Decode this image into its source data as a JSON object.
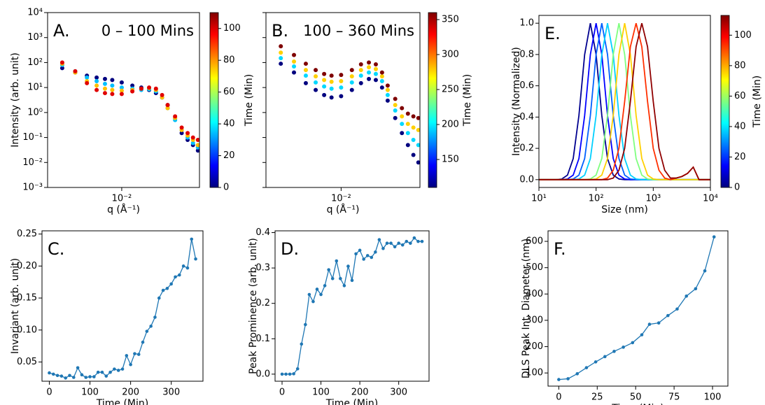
{
  "chart_data": [
    {
      "type": "scatter",
      "panel_label": "A.",
      "subtitle": "0 – 100 Mins",
      "xlabel": "q (Å⁻¹)",
      "ylabel": "Intensity (arb. unit)",
      "xlog": true,
      "ylog": true,
      "xlim": [
        0.0028,
        0.038
      ],
      "ylim": [
        0.001,
        10000
      ],
      "xticks": [
        {
          "value": 0.01,
          "label": "10⁻²"
        }
      ],
      "yticks": [
        {
          "value": 0.001,
          "label": "10⁻³"
        },
        {
          "value": 0.01,
          "label": "10⁻²"
        },
        {
          "value": 0.1,
          "label": "10⁻¹"
        },
        {
          "value": 1,
          "label": "10⁰"
        },
        {
          "value": 10,
          "label": "10¹"
        },
        {
          "value": 100,
          "label": "10²"
        },
        {
          "value": 1000,
          "label": "10³"
        },
        {
          "value": 10000,
          "label": "10⁴"
        }
      ],
      "x": [
        0.0036,
        0.0045,
        0.0055,
        0.0065,
        0.0075,
        0.0085,
        0.01,
        0.012,
        0.014,
        0.016,
        0.018,
        0.02,
        0.022,
        0.025,
        0.028,
        0.031,
        0.034,
        0.037
      ],
      "series": [
        {
          "color": "#00007f",
          "values": [
            60,
            40,
            30,
            25,
            22,
            20,
            16,
            12,
            10,
            8,
            6,
            4,
            2,
            0.6,
            0.15,
            0.08,
            0.05,
            0.03
          ]
        },
        {
          "color": "#00bfff",
          "values": [
            80,
            45,
            25,
            18,
            14,
            12,
            10,
            9,
            8,
            8.5,
            7,
            4,
            1.5,
            0.5,
            0.2,
            0.1,
            0.06,
            0.04
          ]
        },
        {
          "color": "#ffbf00",
          "values": [
            90,
            40,
            18,
            12,
            9,
            8,
            7.5,
            8,
            9,
            9.5,
            8,
            4,
            1.5,
            0.6,
            0.2,
            0.12,
            0.08,
            0.05
          ]
        },
        {
          "color": "#e00000",
          "values": [
            100,
            45,
            15,
            8,
            6,
            5.5,
            5.5,
            7,
            9,
            10,
            9,
            5,
            2,
            0.7,
            0.25,
            0.15,
            0.1,
            0.08
          ]
        }
      ],
      "colorbar": {
        "label": "Time (Min)",
        "lim": [
          0,
          110
        ],
        "ticks": [
          0,
          20,
          40,
          60,
          80,
          100
        ],
        "colors": [
          "#00007f",
          "#0000ff",
          "#007fff",
          "#00ffff",
          "#7fff7f",
          "#ffff00",
          "#ff7f00",
          "#ff0000",
          "#7f0000"
        ]
      }
    },
    {
      "type": "scatter",
      "panel_label": "B.",
      "subtitle": "100 – 360 Mins",
      "xlabel": "q (Å⁻¹)",
      "xlog": true,
      "ylog": true,
      "xlim": [
        0.0028,
        0.038
      ],
      "ylim": [
        0.001,
        10000
      ],
      "xticks": [
        {
          "value": 0.01,
          "label": "10⁻²"
        }
      ],
      "yticks": [
        0.001,
        0.01,
        0.1,
        1,
        10,
        100,
        1000,
        10000
      ],
      "show_ytick_labels": false,
      "x": [
        0.0036,
        0.0045,
        0.0055,
        0.0065,
        0.0075,
        0.0085,
        0.01,
        0.012,
        0.014,
        0.016,
        0.018,
        0.02,
        0.022,
        0.025,
        0.028,
        0.031,
        0.034,
        0.037
      ],
      "series": [
        {
          "color": "#00007f",
          "values": [
            90,
            40,
            15,
            8,
            5,
            4,
            4.5,
            8,
            15,
            22,
            20,
            10,
            3,
            0.6,
            0.15,
            0.05,
            0.02,
            0.01
          ]
        },
        {
          "color": "#00d8ff",
          "values": [
            150,
            70,
            30,
            16,
            11,
            9,
            10,
            16,
            30,
            40,
            35,
            18,
            5,
            1.2,
            0.35,
            0.15,
            0.08,
            0.05
          ]
        },
        {
          "color": "#ffd000",
          "values": [
            250,
            110,
            50,
            28,
            20,
            17,
            18,
            28,
            50,
            65,
            55,
            28,
            8,
            2,
            0.7,
            0.35,
            0.25,
            0.2
          ]
        },
        {
          "color": "#7f0000",
          "values": [
            450,
            200,
            90,
            50,
            35,
            30,
            32,
            50,
            85,
            100,
            85,
            40,
            12,
            3.5,
            1.5,
            0.9,
            0.7,
            0.6
          ]
        }
      ],
      "colorbar": {
        "label": "Time (Min)",
        "lim": [
          110,
          360
        ],
        "ticks": [
          150,
          200,
          250,
          300,
          350
        ],
        "colors": [
          "#00007f",
          "#0000ff",
          "#007fff",
          "#00ffff",
          "#7fff7f",
          "#ffff00",
          "#ff7f00",
          "#ff0000",
          "#7f0000"
        ]
      }
    },
    {
      "type": "line",
      "panel_label": "E.",
      "xlabel": "Size (nm)",
      "ylabel": "Intensity (Normalized)",
      "xlog": true,
      "ylog": false,
      "xlim": [
        10,
        10000
      ],
      "ylim": [
        -0.05,
        1.05
      ],
      "xticks": [
        {
          "value": 10,
          "label": "10¹"
        },
        {
          "value": 100,
          "label": "10²"
        },
        {
          "value": 1000,
          "label": "10³"
        },
        {
          "value": 10000,
          "label": "10⁴"
        }
      ],
      "yticks": [
        {
          "value": 0,
          "label": "0.0"
        },
        0.2,
        0.4,
        0.6,
        0.8,
        {
          "value": 1,
          "label": "1.0"
        }
      ],
      "x": [
        10,
        12.6,
        15.8,
        20,
        25.1,
        31.6,
        39.8,
        50.1,
        63.1,
        79.4,
        100,
        125.9,
        158.5,
        199.5,
        251.2,
        316.2,
        398.1,
        501.2,
        631,
        794.3,
        1000,
        1258.9,
        1584.9,
        1995.3,
        2511.9,
        3162.3,
        3981.1,
        5011.9,
        6309.6,
        7943.3,
        10000
      ],
      "series": [
        {
          "color": "#00008f",
          "values": [
            0,
            0,
            0,
            0,
            0.004,
            0.029,
            0.135,
            0.41,
            0.8,
            1,
            0.8,
            0.41,
            0.135,
            0.029,
            0.004,
            0,
            0,
            0,
            0,
            0,
            0,
            0,
            0,
            0,
            0,
            0,
            0,
            0,
            0,
            0,
            0
          ]
        },
        {
          "color": "#0000ff",
          "values": [
            0,
            0,
            0,
            0,
            0,
            0.004,
            0.029,
            0.135,
            0.41,
            0.8,
            1,
            0.8,
            0.41,
            0.135,
            0.029,
            0.004,
            0,
            0,
            0,
            0,
            0,
            0,
            0,
            0,
            0,
            0,
            0,
            0,
            0,
            0,
            0
          ]
        },
        {
          "color": "#0060ff",
          "values": [
            0,
            0,
            0,
            0,
            0,
            0,
            0.004,
            0.029,
            0.135,
            0.41,
            0.8,
            1,
            0.8,
            0.41,
            0.135,
            0.029,
            0.004,
            0,
            0,
            0,
            0,
            0,
            0,
            0,
            0,
            0,
            0,
            0,
            0,
            0,
            0
          ]
        },
        {
          "color": "#00d0ff",
          "values": [
            0,
            0,
            0,
            0,
            0,
            0,
            0,
            0.004,
            0.029,
            0.135,
            0.41,
            0.8,
            1,
            0.8,
            0.41,
            0.135,
            0.029,
            0.004,
            0,
            0,
            0,
            0,
            0,
            0,
            0,
            0,
            0,
            0,
            0,
            0,
            0
          ]
        },
        {
          "color": "#7fff7f",
          "values": [
            0,
            0,
            0,
            0,
            0,
            0,
            0,
            0,
            0,
            0.004,
            0.029,
            0.135,
            0.41,
            0.8,
            1,
            0.8,
            0.41,
            0.135,
            0.029,
            0.004,
            0,
            0,
            0,
            0,
            0,
            0,
            0,
            0,
            0,
            0,
            0
          ]
        },
        {
          "color": "#ffd000",
          "values": [
            0,
            0,
            0,
            0,
            0,
            0,
            0,
            0,
            0,
            0,
            0.004,
            0.029,
            0.135,
            0.41,
            0.8,
            1,
            0.8,
            0.41,
            0.135,
            0.029,
            0.004,
            0,
            0,
            0,
            0,
            0,
            0,
            0,
            0,
            0,
            0
          ]
        },
        {
          "color": "#ff3000",
          "values": [
            0,
            0,
            0,
            0,
            0,
            0,
            0,
            0,
            0,
            0,
            0,
            0,
            0.01,
            0.06,
            0.2,
            0.5,
            0.85,
            1,
            0.85,
            0.5,
            0.2,
            0.06,
            0.01,
            0,
            0.01,
            0.02,
            0.04,
            0.08,
            0,
            0,
            0
          ]
        },
        {
          "color": "#900000",
          "values": [
            0,
            0,
            0,
            0,
            0,
            0,
            0,
            0,
            0,
            0,
            0,
            0,
            0,
            0.01,
            0.06,
            0.2,
            0.5,
            0.85,
            1,
            0.85,
            0.5,
            0.2,
            0.06,
            0.01,
            0.01,
            0.02,
            0.04,
            0.08,
            0,
            0,
            0
          ]
        }
      ],
      "colorbar": {
        "label": "Time (Min)",
        "lim": [
          0,
          113
        ],
        "ticks": [
          0,
          20,
          40,
          60,
          80,
          100
        ],
        "colors": [
          "#00007f",
          "#0000ff",
          "#007fff",
          "#00ffff",
          "#7fff7f",
          "#ffff00",
          "#ff7f00",
          "#ff0000",
          "#7f0000"
        ]
      }
    },
    {
      "type": "line",
      "markers": true,
      "panel_label": "C.",
      "xlabel": "Time (Min)",
      "ylabel": "Invariant (arb. unit)",
      "xlog": false,
      "ylog": false,
      "xlim": [
        -18,
        378
      ],
      "ylim": [
        0.02,
        0.255
      ],
      "xticks": [
        0,
        100,
        200,
        300
      ],
      "yticks": [
        0.05,
        {
          "value": 0.1,
          "label": "0.10"
        },
        0.15,
        {
          "value": 0.2,
          "label": "0.20"
        },
        0.25
      ],
      "x": [
        0,
        10,
        20,
        30,
        40,
        50,
        60,
        70,
        80,
        90,
        100,
        110,
        120,
        130,
        140,
        150,
        160,
        170,
        180,
        190,
        200,
        210,
        220,
        230,
        240,
        250,
        260,
        270,
        280,
        290,
        300,
        310,
        320,
        330,
        340,
        350,
        360
      ],
      "series": [
        {
          "color": "#1f77b4",
          "values": [
            0.033,
            0.031,
            0.029,
            0.028,
            0.025,
            0.029,
            0.026,
            0.041,
            0.03,
            0.026,
            0.027,
            0.027,
            0.034,
            0.034,
            0.028,
            0.034,
            0.039,
            0.037,
            0.039,
            0.06,
            0.046,
            0.063,
            0.062,
            0.081,
            0.098,
            0.106,
            0.12,
            0.15,
            0.162,
            0.165,
            0.172,
            0.183,
            0.186,
            0.2,
            0.197,
            0.242,
            0.211
          ]
        }
      ]
    },
    {
      "type": "line",
      "markers": true,
      "panel_label": "D.",
      "xlabel": "Time (Min)",
      "ylabel": "Peak Prominence (arb. unit)",
      "xlog": false,
      "ylog": false,
      "xlim": [
        -18,
        378
      ],
      "ylim": [
        -0.02,
        0.405
      ],
      "xticks": [
        0,
        100,
        200,
        300
      ],
      "yticks": [
        {
          "value": 0,
          "label": "0.0"
        },
        0.1,
        0.2,
        0.3,
        0.4
      ],
      "x": [
        0,
        10,
        20,
        30,
        40,
        50,
        60,
        70,
        80,
        90,
        100,
        110,
        120,
        130,
        140,
        150,
        160,
        170,
        180,
        190,
        200,
        210,
        220,
        230,
        240,
        250,
        260,
        270,
        280,
        290,
        300,
        310,
        320,
        330,
        340,
        350,
        360
      ],
      "series": [
        {
          "color": "#1f77b4",
          "values": [
            0,
            0,
            0,
            0.001,
            0.015,
            0.085,
            0.14,
            0.225,
            0.205,
            0.24,
            0.225,
            0.25,
            0.295,
            0.27,
            0.32,
            0.27,
            0.25,
            0.305,
            0.265,
            0.34,
            0.35,
            0.325,
            0.335,
            0.33,
            0.345,
            0.38,
            0.355,
            0.37,
            0.37,
            0.36,
            0.37,
            0.365,
            0.375,
            0.37,
            0.385,
            0.375,
            0.375
          ]
        }
      ]
    },
    {
      "type": "line",
      "markers": true,
      "panel_label": "F.",
      "xlabel": "Time (Min)",
      "ylabel": "DLS Peak Int. Diameter (nm)",
      "xlog": false,
      "ylog": false,
      "xlim": [
        -7,
        110
      ],
      "ylim": [
        50,
        640
      ],
      "xticks": [
        0,
        25,
        50,
        75,
        100
      ],
      "yticks": [
        100,
        200,
        300,
        400,
        500,
        600
      ],
      "x": [
        0,
        6,
        12,
        18,
        24,
        30,
        36,
        42,
        48,
        54,
        59,
        65,
        71,
        77,
        83,
        89,
        95,
        101
      ],
      "series": [
        {
          "color": "#1f77b4",
          "values": [
            75,
            78,
            97,
            120,
            142,
            162,
            182,
            198,
            215,
            245,
            285,
            290,
            318,
            343,
            392,
            420,
            488,
            617
          ]
        }
      ]
    }
  ]
}
